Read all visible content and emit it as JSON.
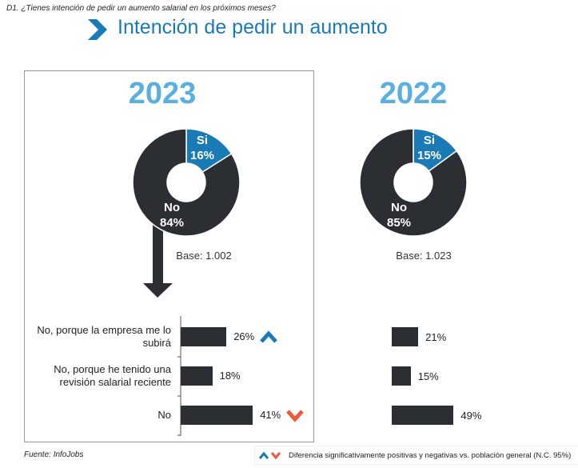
{
  "question": "D1. ¿Tienes intención de pedir un aumento salarial en los próximos meses?",
  "title": "Intención de pedir un aumento",
  "source": "Fuente: InfoJobs",
  "legend_text": "Diferencia significativamente  positivas y negativas vs. población general (N.C. 95%)",
  "colors": {
    "accent": "#1a7ab5",
    "dark": "#2b2e33",
    "up": "#1a7ab5",
    "down": "#f05a3a"
  },
  "chart_data": [
    {
      "type": "pie",
      "year": "2023",
      "base": "Base: 1.002",
      "slices": [
        {
          "label": "Si",
          "value": 16,
          "text": "16%"
        },
        {
          "label": "No",
          "value": 84,
          "text": "84%"
        }
      ]
    },
    {
      "type": "pie",
      "year": "2022",
      "base": "Base: 1.023",
      "slices": [
        {
          "label": "Si",
          "value": 15,
          "text": "15%"
        },
        {
          "label": "No",
          "value": 85,
          "text": "85%"
        }
      ]
    },
    {
      "type": "bar",
      "categories": [
        "No, porque la empresa me lo subirá",
        "No, porque he tenido una revisión salarial reciente",
        "No"
      ],
      "series": [
        {
          "name": "2023",
          "values": [
            26,
            18,
            41
          ],
          "texts": [
            "26%",
            "18%",
            "41%"
          ],
          "significance": [
            "up",
            "",
            "down"
          ]
        },
        {
          "name": "2022",
          "values": [
            21,
            15,
            49
          ],
          "texts": [
            "21%",
            "15%",
            "49%"
          ]
        }
      ]
    }
  ]
}
